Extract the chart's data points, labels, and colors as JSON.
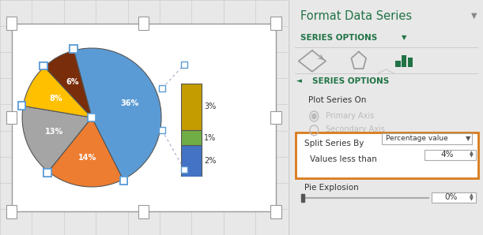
{
  "fig_width": 6.11,
  "fig_height": 2.98,
  "bg_color": "#e8e8e8",
  "chart_bg": "#ffffff",
  "grid_color": "#cccccc",
  "pie_sizes": [
    36,
    14,
    13,
    8,
    6
  ],
  "pie_colors": [
    "#5b9bd5",
    "#ed7d31",
    "#a5a5a5",
    "#ffc000",
    "#7a2d0a"
  ],
  "pie_labels": [
    "36%",
    "14%",
    "13%",
    "8%",
    "6%"
  ],
  "bar_sizes": [
    2,
    1,
    3
  ],
  "bar_colors": [
    "#4472c4",
    "#70ad47",
    "#c49c00"
  ],
  "bar_labels": [
    "2%",
    "1%",
    "3%"
  ],
  "handle_color_outer": "#5b9bd5",
  "panel_bg": "#ffffff",
  "panel_title": "Format Data Series",
  "panel_title_color": "#217346",
  "series_options_label": "SERIES OPTIONS",
  "series_options_color": "#217346",
  "plot_series_on": "Plot Series On",
  "primary_axis": "Primary Axis",
  "secondary_axis": "Secondary Axis",
  "split_series_by": "Split Series By",
  "percentage_value": "Percentage value",
  "values_less_than": "Values less than",
  "values_less_than_val": "4%",
  "pie_explosion_label": "Pie Explosion",
  "pie_explosion_val": "0%",
  "orange_box_color": "#d97b1a",
  "triangle_color": "#666666",
  "text_gray": "#666666",
  "text_dark": "#333333"
}
